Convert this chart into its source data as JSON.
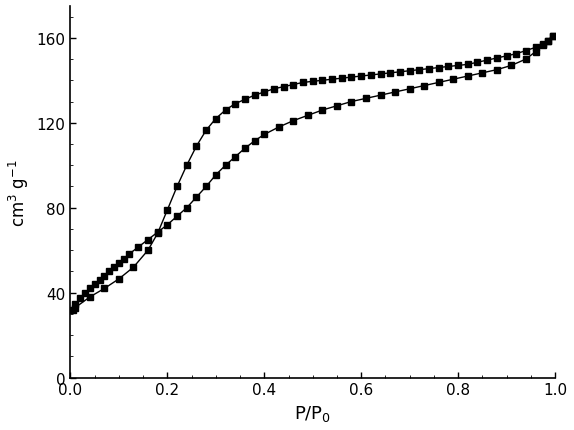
{
  "title": "",
  "xlabel": "P/P$_0$",
  "ylabel": "cm$^3$ g$^{-1}$",
  "xlim": [
    0.0,
    1.0
  ],
  "ylim": [
    0,
    175
  ],
  "yticks": [
    0,
    40,
    80,
    120,
    160
  ],
  "xticks": [
    0.0,
    0.2,
    0.4,
    0.6,
    0.8,
    1.0
  ],
  "line_color": "#000000",
  "marker": "s",
  "markersize": 4.5,
  "linewidth": 1.0,
  "adsorption_x": [
    0.005,
    0.01,
    0.02,
    0.03,
    0.04,
    0.05,
    0.06,
    0.07,
    0.08,
    0.09,
    0.1,
    0.11,
    0.12,
    0.14,
    0.16,
    0.18,
    0.2,
    0.22,
    0.24,
    0.26,
    0.28,
    0.3,
    0.32,
    0.34,
    0.36,
    0.38,
    0.4,
    0.43,
    0.46,
    0.49,
    0.52,
    0.55,
    0.58,
    0.61,
    0.64,
    0.67,
    0.7,
    0.73,
    0.76,
    0.79,
    0.82,
    0.85,
    0.88,
    0.91,
    0.94,
    0.96,
    0.975,
    0.985,
    0.995
  ],
  "adsorption_y": [
    32.0,
    34.5,
    37.5,
    40.0,
    42.0,
    44.0,
    46.0,
    48.0,
    50.0,
    52.0,
    54.0,
    56.0,
    58.0,
    61.5,
    65.0,
    68.5,
    72.0,
    76.0,
    80.0,
    85.0,
    90.0,
    95.5,
    100.0,
    104.0,
    108.0,
    111.5,
    114.5,
    118.0,
    121.0,
    123.5,
    126.0,
    128.0,
    130.0,
    131.5,
    133.0,
    134.5,
    136.0,
    137.5,
    139.0,
    140.5,
    142.0,
    143.5,
    145.0,
    147.0,
    150.0,
    153.5,
    156.5,
    158.5,
    161.0
  ],
  "desorption_x": [
    0.995,
    0.985,
    0.975,
    0.96,
    0.94,
    0.92,
    0.9,
    0.88,
    0.86,
    0.84,
    0.82,
    0.8,
    0.78,
    0.76,
    0.74,
    0.72,
    0.7,
    0.68,
    0.66,
    0.64,
    0.62,
    0.6,
    0.58,
    0.56,
    0.54,
    0.52,
    0.5,
    0.48,
    0.46,
    0.44,
    0.42,
    0.4,
    0.38,
    0.36,
    0.34,
    0.32,
    0.3,
    0.28,
    0.26,
    0.24,
    0.22,
    0.2,
    0.18,
    0.16,
    0.13,
    0.1,
    0.07,
    0.04,
    0.01
  ],
  "desorption_y": [
    161.0,
    158.5,
    157.0,
    155.5,
    154.0,
    152.5,
    151.5,
    150.5,
    149.5,
    148.5,
    147.5,
    147.0,
    146.5,
    146.0,
    145.5,
    145.0,
    144.5,
    144.0,
    143.5,
    143.0,
    142.5,
    142.0,
    141.5,
    141.0,
    140.5,
    140.0,
    139.5,
    139.0,
    138.0,
    137.0,
    136.0,
    134.5,
    133.0,
    131.0,
    129.0,
    126.0,
    122.0,
    116.5,
    109.0,
    100.0,
    90.0,
    79.0,
    68.0,
    60.0,
    52.0,
    46.5,
    42.0,
    38.0,
    33.0
  ]
}
